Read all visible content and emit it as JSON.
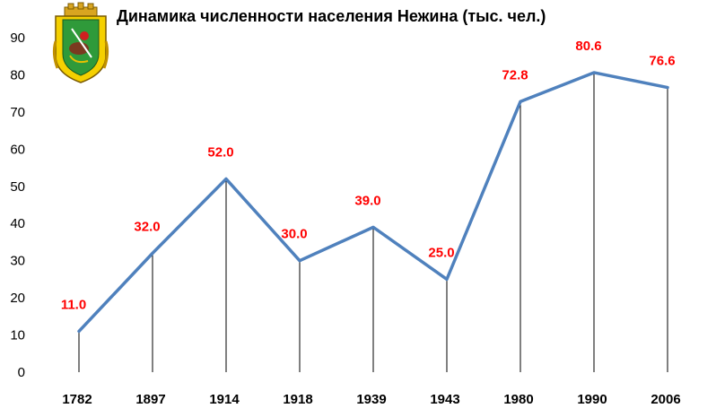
{
  "chart_data": {
    "type": "line",
    "title": "Динамика численности населения Нежина (тыс. чел.)",
    "xlabel": "",
    "ylabel": "",
    "categories": [
      "1782",
      "1897",
      "1914",
      "1918",
      "1939",
      "1943",
      "1980",
      "1990",
      "2006"
    ],
    "series": [
      {
        "values": [
          11.0,
          32.0,
          52.0,
          30.0,
          39.0,
          25.0,
          72.8,
          80.6,
          76.6
        ]
      }
    ],
    "data_labels": [
      "11.0",
      "32.0",
      "52.0",
      "30.0",
      "39.0",
      "25.0",
      "72.8",
      "80.6",
      "76.6"
    ],
    "yticks": [
      "0",
      "10",
      "20",
      "30",
      "40",
      "50",
      "60",
      "70",
      "80",
      "90"
    ],
    "ylim": [
      0,
      90
    ],
    "grid": false,
    "drop_lines": true,
    "legend": "none"
  },
  "colors": {
    "line": "#4f81bd",
    "data_label": "#ff0000",
    "drop_line": "#000000",
    "text": "#000000"
  },
  "icons": {
    "coat_of_arms": "nizhyn-coat-of-arms"
  }
}
